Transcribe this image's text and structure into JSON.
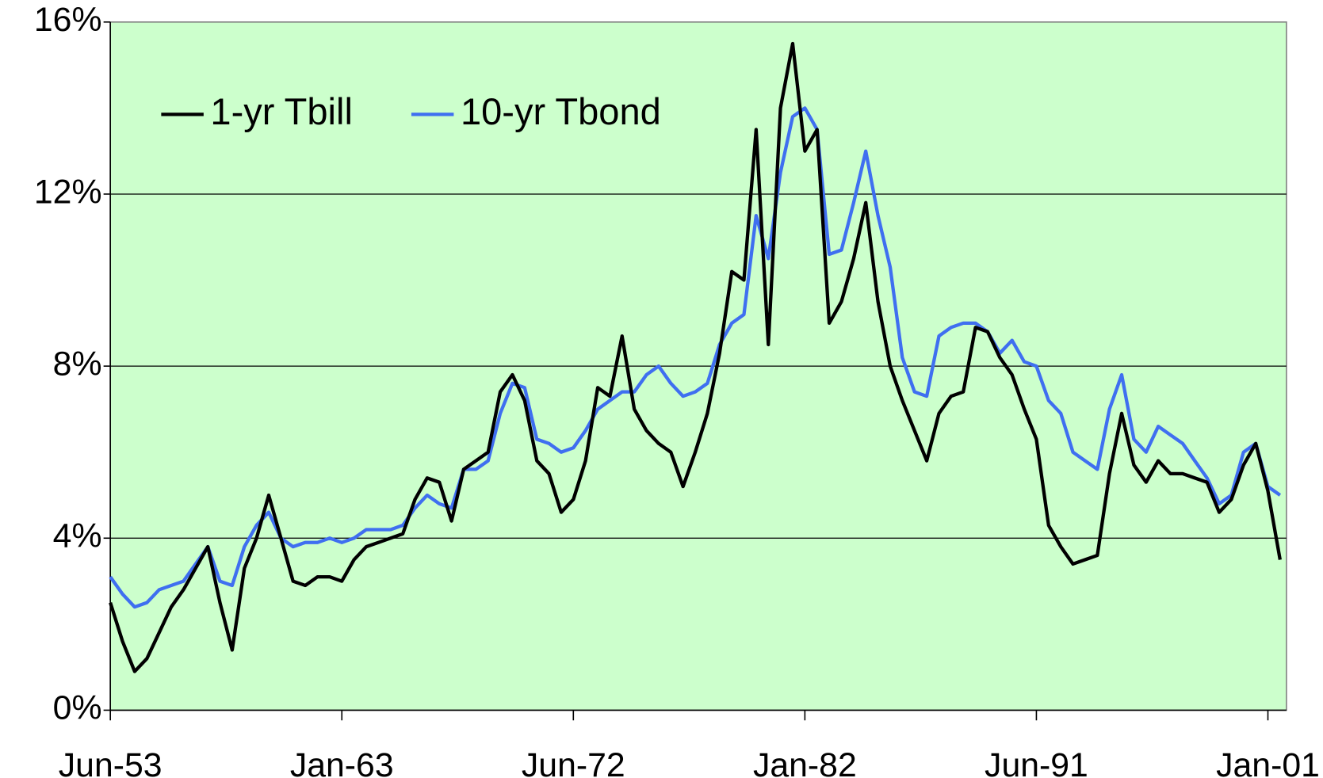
{
  "chart_data": {
    "type": "line",
    "categories": [
      "Jun-53",
      null,
      null,
      null,
      null,
      null,
      null,
      null,
      null,
      null,
      null,
      null,
      null,
      null,
      null,
      null,
      null,
      null,
      null,
      "Jan-63",
      null,
      null,
      null,
      null,
      null,
      null,
      null,
      null,
      null,
      null,
      null,
      null,
      null,
      null,
      null,
      null,
      null,
      null,
      "Jun-72",
      null,
      null,
      null,
      null,
      null,
      null,
      null,
      null,
      null,
      null,
      null,
      null,
      null,
      null,
      null,
      null,
      null,
      null,
      "Jan-82",
      null,
      null,
      null,
      null,
      null,
      null,
      null,
      null,
      null,
      null,
      null,
      null,
      null,
      null,
      null,
      null,
      null,
      null,
      "Jun-91",
      null,
      null,
      null,
      null,
      null,
      null,
      null,
      null,
      null,
      null,
      null,
      null,
      null,
      null,
      null,
      null,
      null,
      null,
      "Jan-01",
      null
    ],
    "series": [
      {
        "name": "1-yr Tbill",
        "color": "#000000",
        "values": [
          2.5,
          1.6,
          0.9,
          1.2,
          1.8,
          2.4,
          2.8,
          3.3,
          3.8,
          2.5,
          1.4,
          3.3,
          4.0,
          5.0,
          4.0,
          3.0,
          2.9,
          3.1,
          3.1,
          3.0,
          3.5,
          3.8,
          3.9,
          4.0,
          4.1,
          4.9,
          5.4,
          5.3,
          4.4,
          5.6,
          5.8,
          6.0,
          7.4,
          7.8,
          7.2,
          5.8,
          5.5,
          4.6,
          4.9,
          5.8,
          7.5,
          7.3,
          8.7,
          7.0,
          6.5,
          6.2,
          6.0,
          5.2,
          6.0,
          6.9,
          8.3,
          10.2,
          10.0,
          13.5,
          8.5,
          14.0,
          15.5,
          13.0,
          13.5,
          9.0,
          9.5,
          10.5,
          11.8,
          9.5,
          8.0,
          7.2,
          6.5,
          5.8,
          6.9,
          7.3,
          7.4,
          8.9,
          8.8,
          8.2,
          7.8,
          7.0,
          6.3,
          4.3,
          3.8,
          3.4,
          3.5,
          3.6,
          5.5,
          6.9,
          5.7,
          5.3,
          5.8,
          5.5,
          5.5,
          5.4,
          5.3,
          4.6,
          4.9,
          5.7,
          6.2,
          5.1,
          3.5
        ]
      },
      {
        "name": "10-yr Tbond",
        "color": "#3f6ff0",
        "values": [
          3.1,
          2.7,
          2.4,
          2.5,
          2.8,
          2.9,
          3.0,
          3.4,
          3.8,
          3.0,
          2.9,
          3.8,
          4.3,
          4.6,
          4.0,
          3.8,
          3.9,
          3.9,
          4.0,
          3.9,
          4.0,
          4.2,
          4.2,
          4.2,
          4.3,
          4.7,
          5.0,
          4.8,
          4.7,
          5.6,
          5.6,
          5.8,
          6.9,
          7.6,
          7.5,
          6.3,
          6.2,
          6.0,
          6.1,
          6.5,
          7.0,
          7.2,
          7.4,
          7.4,
          7.8,
          8.0,
          7.6,
          7.3,
          7.4,
          7.6,
          8.5,
          9.0,
          9.2,
          11.5,
          10.5,
          12.5,
          13.8,
          14.0,
          13.5,
          10.6,
          10.7,
          11.8,
          13.0,
          11.5,
          10.3,
          8.2,
          7.4,
          7.3,
          8.7,
          8.9,
          9.0,
          9.0,
          8.8,
          8.3,
          8.6,
          8.1,
          8.0,
          7.2,
          6.9,
          6.0,
          5.8,
          5.6,
          7.0,
          7.8,
          6.3,
          6.0,
          6.6,
          6.4,
          6.2,
          5.8,
          5.4,
          4.8,
          5.0,
          6.0,
          6.2,
          5.2,
          5.0
        ]
      }
    ],
    "ylim": [
      0,
      16
    ],
    "yticks": [
      {
        "value": 0,
        "label": "0%"
      },
      {
        "value": 4,
        "label": "4%"
      },
      {
        "value": 8,
        "label": "8%"
      },
      {
        "value": 12,
        "label": "12%"
      },
      {
        "value": 16,
        "label": "16%"
      }
    ],
    "grid": true,
    "background": "#ccffcc",
    "legend": "top-left"
  }
}
